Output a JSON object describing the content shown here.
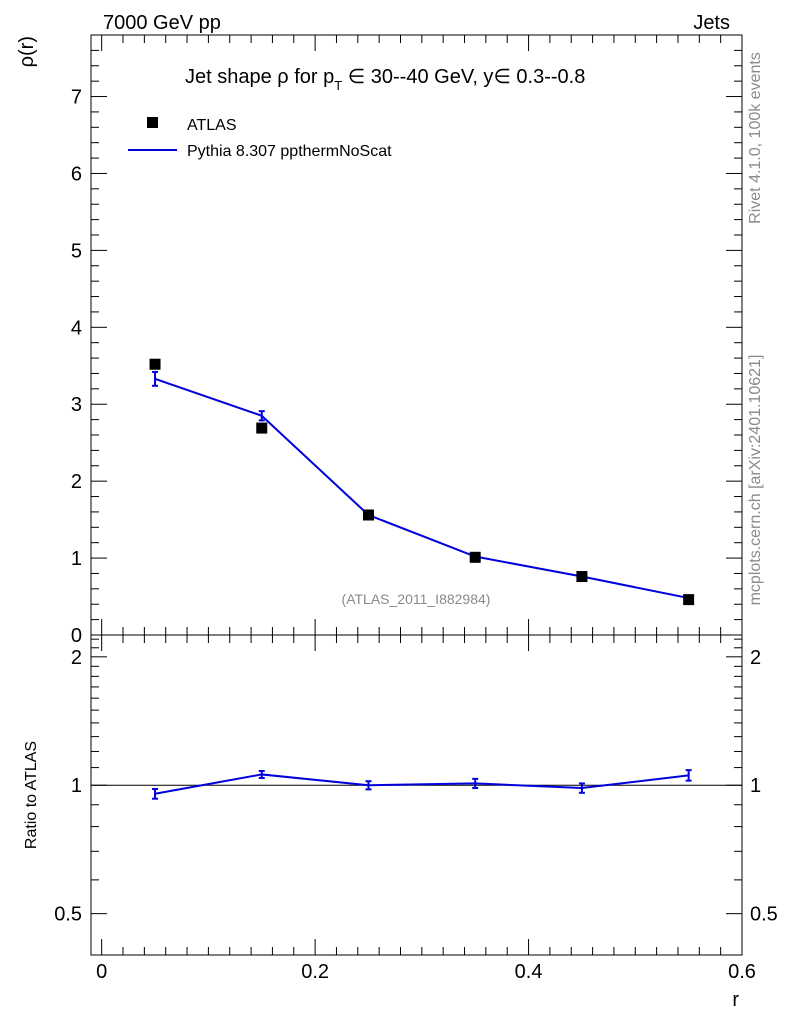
{
  "header": {
    "left": "7000 GeV pp",
    "right": "Jets"
  },
  "side_labels": {
    "rivet": "Rivet 4.1.0,  100k events",
    "mcplots": "mcplots.cern.ch [arXiv:2401.10621]"
  },
  "colors": {
    "data": "#000000",
    "mc": "#0000dd",
    "watermark": "#8a8a8a"
  },
  "chart_data": [
    {
      "type": "line",
      "title_parts": {
        "prefix": "Jet shape ",
        "rho": "ρ",
        "for": " for p",
        "sub": "T",
        "in1": " ∈ ",
        "range1": "30--40 GeV, y",
        "in2": "∈",
        "range2": " 0.3--0.8"
      },
      "xlabel": "r",
      "ylabel": "ρ(r)",
      "xlim": [
        -0.01,
        0.6
      ],
      "ylim": [
        0,
        7.8
      ],
      "yticks": [
        0,
        1,
        2,
        3,
        4,
        5,
        6,
        7
      ],
      "ytick_labels": [
        "0",
        "1",
        "2",
        "3",
        "4",
        "5",
        "6",
        "7"
      ],
      "watermark": "(ATLAS_2011_I882984)",
      "legend": [
        {
          "name": "ATLAS",
          "marker": "square"
        },
        {
          "name": "Pythia 8.307 ppthermNoScat",
          "marker": "line"
        }
      ],
      "series": [
        {
          "name": "ATLAS",
          "x": [
            0.05,
            0.15,
            0.25,
            0.35,
            0.45,
            0.55
          ],
          "y": [
            3.52,
            2.69,
            1.56,
            1.01,
            0.76,
            0.46
          ]
        },
        {
          "name": "Pythia 8.307 ppthermNoScat",
          "x": [
            0.05,
            0.15,
            0.25,
            0.35,
            0.45,
            0.55
          ],
          "y": [
            3.33,
            2.85,
            1.56,
            1.02,
            0.76,
            0.48
          ],
          "err": [
            0.09,
            0.06,
            0.03,
            0.02,
            0.02,
            0.02
          ]
        }
      ]
    },
    {
      "type": "line",
      "ylabel": "Ratio to ATLAS",
      "xlabel": "r",
      "xlim": [
        -0.01,
        0.6
      ],
      "ylim": [
        0.4,
        2.25
      ],
      "scale": "log",
      "yticks": [
        0.5,
        1,
        2
      ],
      "ytick_labels": [
        "0.5",
        "1",
        "2"
      ],
      "xticks": [
        0,
        0.2,
        0.4,
        0.6
      ],
      "xtick_labels": [
        "0",
        "0.2",
        "0.4",
        "0.6"
      ],
      "series": [
        {
          "name": "Pythia 8.307 ppthermNoScat",
          "x": [
            0.05,
            0.15,
            0.25,
            0.35,
            0.45,
            0.55
          ],
          "y": [
            0.955,
            1.06,
            1.0,
            1.01,
            0.985,
            1.055
          ],
          "err": [
            0.025,
            0.02,
            0.022,
            0.025,
            0.025,
            0.03
          ]
        }
      ]
    }
  ]
}
